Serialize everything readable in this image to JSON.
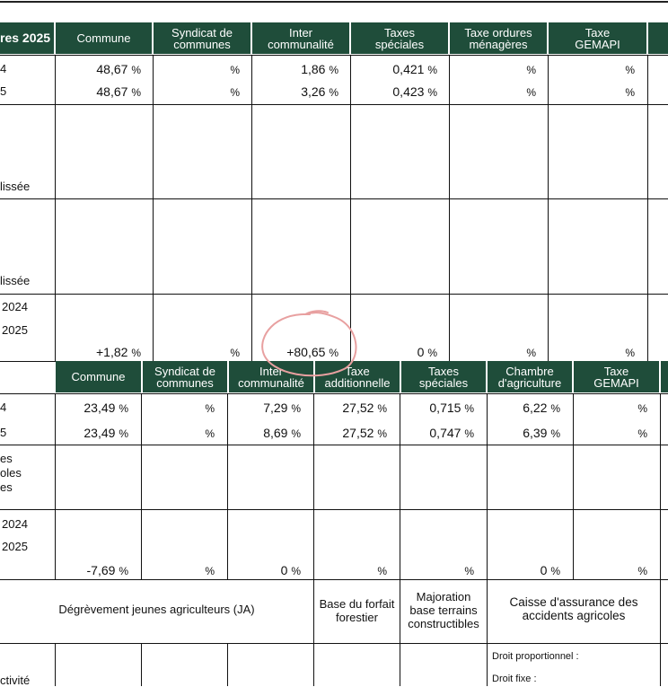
{
  "table1": {
    "corner_label": "res 2025",
    "headers": [
      "Commune",
      "Syndicat de\ncommunes",
      "Inter\ncommunalité",
      "Taxes\nspéciales",
      "Taxe ordures\nménagères",
      "Taxe\nGEMAPI"
    ],
    "row_labels": [
      "4",
      "5"
    ],
    "row_2024": [
      "48,67",
      "",
      "1,86",
      "0,421",
      "",
      ""
    ],
    "row_2025": [
      "48,67",
      "",
      "3,26",
      "0,423",
      "",
      ""
    ],
    "lisse_label_1": "lissée",
    "lisse_label_2": "lissée",
    "year_label_1": "2024",
    "year_label_2": "2025",
    "variation": [
      "+1,82",
      "",
      "+80,65",
      "0",
      "",
      ""
    ],
    "percent_sign": "%"
  },
  "table2": {
    "headers": [
      "Commune",
      "Syndicat de\ncommunes",
      "Inter\ncommunalité",
      "Taxe\nadditionnelle",
      "Taxes\nspéciales",
      "Chambre\nd'agriculture",
      "Taxe\nGEMAPI"
    ],
    "row_labels": [
      "4",
      "5"
    ],
    "row_2024": [
      "23,49",
      "",
      "7,29",
      "27,52",
      "0,715",
      "6,22",
      ""
    ],
    "row_2025": [
      "23,49",
      "",
      "8,69",
      "27,52",
      "0,747",
      "6,39",
      ""
    ],
    "side_label": "es\noles\nes",
    "year_label_1": "2024",
    "year_label_2": "2025",
    "variation": [
      "-7,69",
      "",
      "0",
      "",
      "",
      "0",
      ""
    ],
    "percent_sign": "%"
  },
  "table3": {
    "col1": "Dégrèvement jeunes agriculteurs (JA)",
    "col2": "Base du forfait\nforestier",
    "col3": "Majoration\nbase terrains\nconstructibles",
    "col4": "Caisse d'assurance des\naccidents agricoles",
    "activity_label": "ctivité",
    "droit_proportionnel": "Droit proportionnel :",
    "droit_fixe": "Droit fixe :"
  },
  "colors": {
    "header_green": "#1f4d3a",
    "annotation_circle": "#e8a0a0"
  }
}
